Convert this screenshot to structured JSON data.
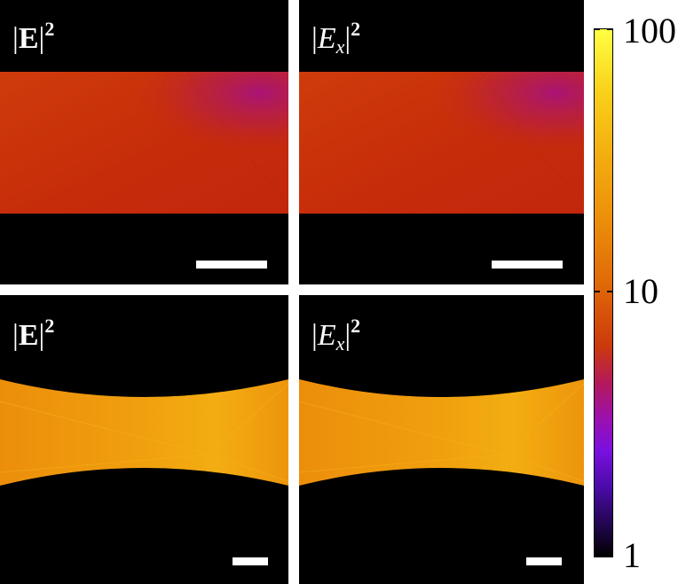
{
  "panels": [
    {
      "label_main": "E",
      "label_sub": "",
      "label_sup": "2",
      "field": "|E|^2"
    },
    {
      "label_main": "E",
      "label_sub": "x",
      "label_sup": "2",
      "field": "|Ex|^2"
    },
    {
      "label_main": "E",
      "label_sub": "",
      "label_sup": "2",
      "field": "|E|^2"
    },
    {
      "label_main": "E",
      "label_sub": "x",
      "label_sup": "2",
      "field": "|Ex|^2"
    }
  ],
  "colorbar": {
    "scale": "log",
    "range": [
      1,
      100
    ],
    "tick_labels": {
      "top": "100",
      "mid": "10",
      "bottom": "1"
    },
    "colormap": "black-purple-red-orange-yellow"
  }
}
